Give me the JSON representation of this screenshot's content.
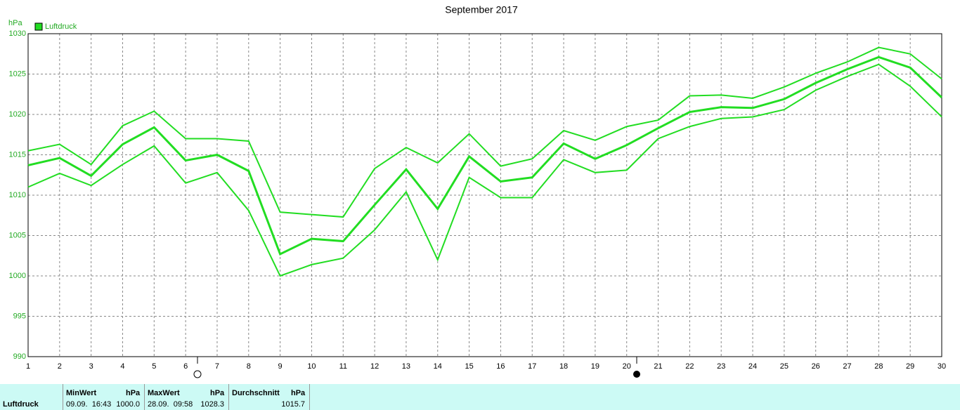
{
  "chart_data": {
    "type": "line",
    "title": "September 2017",
    "y_label": "hPa",
    "x": [
      1,
      2,
      3,
      4,
      5,
      6,
      7,
      8,
      9,
      10,
      11,
      12,
      13,
      14,
      15,
      16,
      17,
      18,
      19,
      20,
      21,
      22,
      23,
      24,
      25,
      26,
      27,
      28,
      29,
      30
    ],
    "xlim": [
      1,
      30
    ],
    "xticks": [
      1,
      2,
      3,
      4,
      5,
      6,
      7,
      8,
      9,
      10,
      11,
      12,
      13,
      14,
      15,
      16,
      17,
      18,
      19,
      20,
      21,
      22,
      23,
      24,
      25,
      26,
      27,
      28,
      29,
      30
    ],
    "ylim": [
      990,
      1030
    ],
    "yticks": [
      990,
      995,
      1000,
      1005,
      1010,
      1015,
      1020,
      1025,
      1030
    ],
    "grid": true,
    "legend": "top-left",
    "series": [
      {
        "color": "#22dd22",
        "line_width": 2,
        "values": [
          1015.5,
          1016.3,
          1013.8,
          1018.6,
          1020.4,
          1017.0,
          1017.0,
          1016.7,
          1007.9,
          1007.6,
          1007.3,
          1013.3,
          1015.9,
          1014.0,
          1017.6,
          1013.6,
          1014.5,
          1018.0,
          1016.8,
          1018.5,
          1019.3,
          1022.3,
          1022.4,
          1022.0,
          1023.4,
          1025.1,
          1026.5,
          1028.3,
          1027.5,
          1024.4
        ]
      },
      {
        "name": "Luftdruck",
        "color": "#22dd22",
        "line_width": 3,
        "values": [
          1013.7,
          1014.6,
          1012.4,
          1016.3,
          1018.4,
          1014.3,
          1015.0,
          1013.0,
          1002.7,
          1004.6,
          1004.3,
          1008.8,
          1013.2,
          1008.3,
          1014.8,
          1011.7,
          1012.2,
          1016.4,
          1014.5,
          1016.2,
          1018.3,
          1020.3,
          1020.9,
          1020.8,
          1021.9,
          1023.9,
          1025.6,
          1027.1,
          1025.8,
          1022.1
        ]
      },
      {
        "color": "#22dd22",
        "line_width": 2,
        "values": [
          1011.0,
          1012.7,
          1011.2,
          1013.8,
          1016.1,
          1011.5,
          1012.8,
          1008.1,
          1000.0,
          1001.4,
          1002.2,
          1005.7,
          1010.4,
          1002.0,
          1012.2,
          1009.7,
          1009.7,
          1014.4,
          1012.8,
          1013.1,
          1017.0,
          1018.5,
          1019.5,
          1019.7,
          1020.6,
          1023.0,
          1024.7,
          1026.2,
          1023.5,
          1019.7
        ]
      }
    ]
  },
  "table": {
    "label": "Luftdruck",
    "columns": [
      {
        "header": "MinWert",
        "unit": "hPa",
        "time": "09.09.  16:43",
        "value": "1000.0"
      },
      {
        "header": "MaxWert",
        "unit": "hPa",
        "time": "28.09.  09:58",
        "value": "1028.3"
      },
      {
        "header": "Durchschnitt",
        "unit": "hPa",
        "value": "1015.7"
      }
    ]
  }
}
